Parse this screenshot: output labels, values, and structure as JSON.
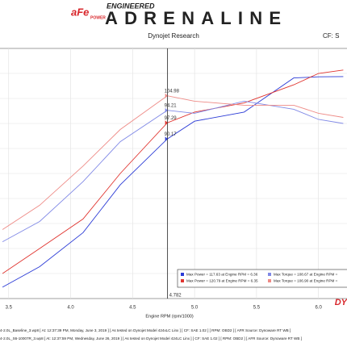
{
  "header": {
    "brand": "aFe",
    "brand_sub": "POWER",
    "tagline": "ENGINEERED",
    "title": "ADRENALINE"
  },
  "chart_data": {
    "type": "line",
    "title": "Dynojet Research",
    "corner_text": "CF: S",
    "x_label": "Engine RPM (rpm/1000)",
    "x": [
      3.45,
      3.75,
      4.1,
      4.4,
      4.78,
      5.0,
      5.4,
      5.8,
      6.0,
      6.2
    ],
    "xlim": [
      3.43,
      6.23
    ],
    "xticks": [
      3.5,
      {
        "value": 4,
        "label": "4.0"
      },
      4.5,
      {
        "value": 5,
        "label": "5.0"
      },
      5.5,
      {
        "value": 6,
        "label": "6.0"
      }
    ],
    "ylim": [
      20,
      130
    ],
    "y2lim": [
      -45,
      140
    ],
    "grid": true,
    "series": [
      {
        "color": "#2b3bd6",
        "values": [
          25,
          34,
          49,
          70,
          90.17,
          98,
          102,
          117,
          117.5,
          117.6
        ]
      },
      {
        "color": "#e0342f",
        "values": [
          31,
          42,
          55,
          75,
          97.29,
          102,
          106,
          114,
          119,
          120.5
        ]
      },
      {
        "color": "#8089e6",
        "axis": "y2",
        "values": [
          -3,
          12,
          41.5,
          71,
          94.21,
          92,
          101,
          95,
          87.5,
          84.5
        ]
      },
      {
        "color": "#ee8a86",
        "axis": "y2",
        "values": [
          6,
          24,
          53,
          80,
          104.98,
          101,
          98,
          98,
          92,
          89
        ]
      }
    ],
    "cursor": {
      "value": 4.782,
      "label": "4.782"
    },
    "cursor_labels": [
      "90.17",
      "97.29",
      "94.21",
      "104.98"
    ],
    "legend": {
      "corner": "lower right",
      "entries": [
        "Max Power = 117.63 at Engine RPM = 6.36",
        "Max Torque = 108.67 at Engine RPM =",
        "Max Power = 120.79 at Engine RPM = 6.35",
        "Max Torque = 106.90 at Engine RPM ="
      ]
    },
    "watermark": "DY",
    "footer": [
      "4-2.0L_Baseline_3.wp8 [ At: 12:37:39 PM, Monday, June 3, 2019 ] [ As tested on Dynojet Model 424xLC Linx ] [ CF: SAE 1.02 ] [ RPM: OBD2 ] [ AFR Source: Dynoware RT WB ]",
      "4-2.0L_S6-10007R_3.wp8 [ At: 12:37:59 PM, Wednesday, June 26, 2019 ] [ As tested on Dynojet Model 424LC Linx ] [ CF: SAE 1.02 ] [ RPM: OBD2 ] [ AFR Source: Dynoware RT WB ]"
    ]
  }
}
